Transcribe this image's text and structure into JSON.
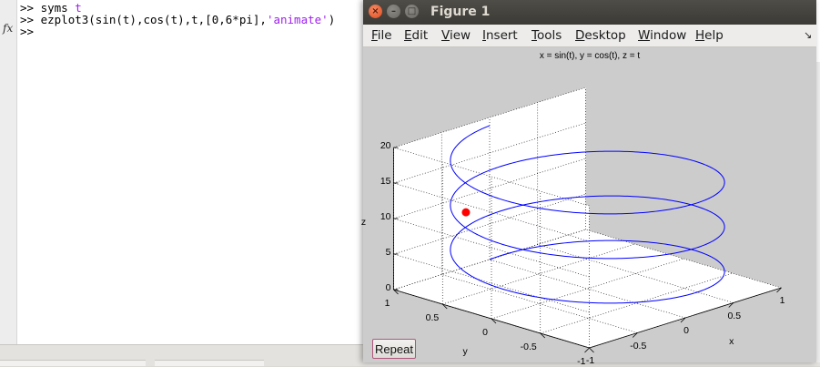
{
  "command_window": {
    "prompt": ">>",
    "lines": [
      {
        "prompt": ">>",
        "text_plain": "syms ",
        "text_keyword": "t"
      },
      {
        "prompt": ">>",
        "code": "ezplot3(sin(t),cos(t),t,[0,6*pi],",
        "string_arg": "'animate'",
        "close": ")"
      },
      {
        "prompt": ">>"
      }
    ],
    "fx_label": "fx",
    "keyword_color": "#a020f0"
  },
  "figure": {
    "window_title": "Figure 1",
    "buttons": {
      "close": "×",
      "minimize": "–",
      "maximize": "□"
    },
    "menu": [
      {
        "label": "File"
      },
      {
        "label": "Edit"
      },
      {
        "label": "View"
      },
      {
        "label": "Insert"
      },
      {
        "label": "Tools"
      },
      {
        "label": "Desktop"
      },
      {
        "label": "Window"
      },
      {
        "label": "Help"
      }
    ],
    "dock_icon": "↘",
    "repeat_button": "Repeat"
  },
  "chart_data": {
    "type": "line",
    "projection": "3d",
    "title": "x = sin(t), y = cos(t), z = t",
    "xlabel": "x",
    "ylabel": "y",
    "zlabel": "z",
    "xlim": [
      -1,
      1
    ],
    "ylim": [
      -1,
      1
    ],
    "zlim": [
      0,
      20
    ],
    "x_ticks": [
      "-1",
      "-0.5",
      "0",
      "0.5",
      "1"
    ],
    "y_ticks": [
      "1",
      "0.5",
      "0",
      "-0.5",
      "-1"
    ],
    "z_ticks": [
      "0",
      "5",
      "10",
      "15",
      "20"
    ],
    "grid": true,
    "series": [
      {
        "x_expr": "sin(t)",
        "y_expr": "cos(t)",
        "z_expr": "t",
        "t_range": [
          0,
          18.85
        ],
        "color": "#0000ff"
      }
    ],
    "marker": {
      "x": -0.95,
      "y": 0.31,
      "z": 13.5,
      "color": "#ff0000"
    }
  }
}
